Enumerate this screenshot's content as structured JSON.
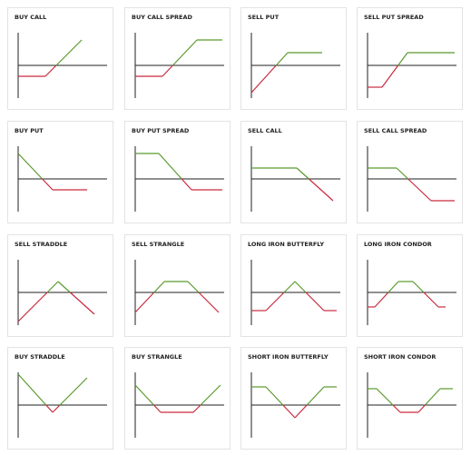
{
  "tiles": [
    {
      "title": "BUY CALL"
    },
    {
      "title": "BUY CALL SPREAD"
    },
    {
      "title": "SELL PUT"
    },
    {
      "title": "SELL PUT SPREAD"
    },
    {
      "title": "BUY PUT"
    },
    {
      "title": "BUY PUT SPREAD"
    },
    {
      "title": "SELL CALL"
    },
    {
      "title": "SELL CALL SPREAD"
    },
    {
      "title": "SELL STRADDLE"
    },
    {
      "title": "SELL STRANGLE"
    },
    {
      "title": "LONG IRON BUTTERFLY"
    },
    {
      "title": "LONG IRON CONDOR"
    },
    {
      "title": "BUY STRADDLE"
    },
    {
      "title": "BUY STRANGLE"
    },
    {
      "title": "SHORT IRON BUTTERFLY"
    },
    {
      "title": "SHORT IRON CONDOR"
    }
  ]
}
